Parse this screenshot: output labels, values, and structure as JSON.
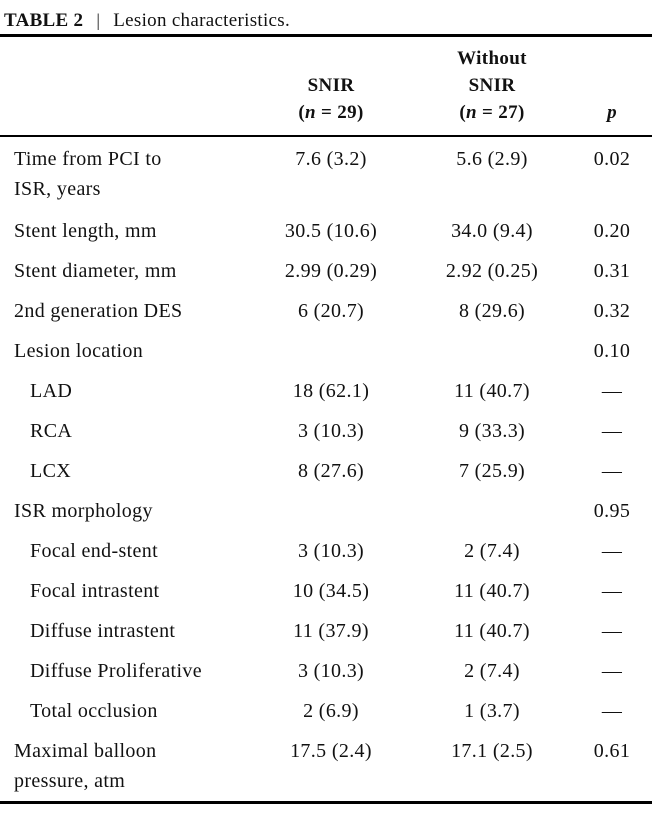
{
  "page": {
    "background": "#ffffff",
    "text_color": "#111111",
    "rule_color": "#000000"
  },
  "caption": {
    "label": "TABLE 2",
    "separator": "|",
    "text": "Lesion characteristics."
  },
  "header": {
    "row_label_column": "",
    "snir": {
      "line1": "SNIR",
      "n_open": "(",
      "n": "n",
      "n_rest": " = 29)"
    },
    "without_snir": {
      "line1": "Without",
      "line2": "SNIR",
      "n_open": "(",
      "n": "n",
      "n_rest": " = 27)"
    },
    "p": "p"
  },
  "rows": [
    {
      "label": [
        "Time from PCI to",
        "ISR, years"
      ],
      "snir": "7.6 (3.2)",
      "without": "5.6 (2.9)",
      "p": "0.02"
    },
    {
      "label": "Stent length, mm",
      "snir": "30.5 (10.6)",
      "without": "34.0 (9.4)",
      "p": "0.20"
    },
    {
      "label": "Stent diameter, mm",
      "snir": "2.99 (0.29)",
      "without": "2.92 (0.25)",
      "p": "0.31"
    },
    {
      "label": "2nd generation DES",
      "snir": "6 (20.7)",
      "without": "8 (29.6)",
      "p": "0.32"
    },
    {
      "label": "Lesion location",
      "snir": "",
      "without": "",
      "p": "0.10"
    },
    {
      "label": "LAD",
      "snir": "18 (62.1)",
      "without": "11 (40.7)",
      "p": "—"
    },
    {
      "label": "RCA",
      "snir": "3 (10.3)",
      "without": "9 (33.3)",
      "p": "—"
    },
    {
      "label": "LCX",
      "snir": "8 (27.6)",
      "without": "7 (25.9)",
      "p": "—"
    },
    {
      "label": "ISR morphology",
      "snir": "",
      "without": "",
      "p": "0.95"
    },
    {
      "label": "Focal end-stent",
      "snir": "3 (10.3)",
      "without": "2 (7.4)",
      "p": "—"
    },
    {
      "label": "Focal intrastent",
      "snir": "10 (34.5)",
      "without": "11 (40.7)",
      "p": "—"
    },
    {
      "label": "Diffuse intrastent",
      "snir": "11 (37.9)",
      "without": "11 (40.7)",
      "p": "—"
    },
    {
      "label": "Diffuse Proliferative",
      "snir": "3 (10.3)",
      "without": "2 (7.4)",
      "p": "—"
    },
    {
      "label": "Total occlusion",
      "snir": "2 (6.9)",
      "without": "1 (3.7)",
      "p": "—"
    },
    {
      "label": [
        "Maximal balloon",
        "pressure, atm"
      ],
      "snir": "17.5 (2.4)",
      "without": "17.1 (2.5)",
      "p": "0.61"
    }
  ]
}
